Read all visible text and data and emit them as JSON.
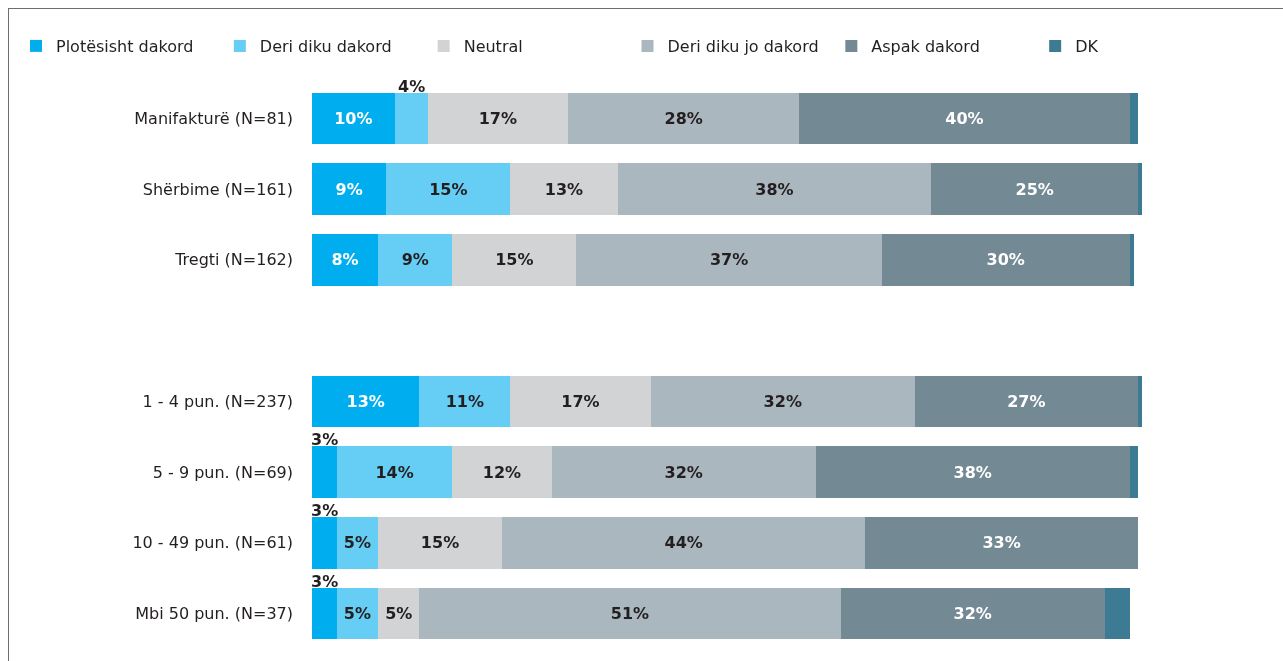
{
  "chart_data": {
    "type": "bar",
    "orientation": "horizontal",
    "stacked": true,
    "legend": "top",
    "tick_labels": "y",
    "categories": [
      "Manifakturë (N=81)",
      "Shërbime (N=161)",
      "Tregti (N=162)",
      null,
      "1 - 4 pun. (N=237)",
      "5 - 9 pun. (N=69)",
      "10 - 49 pun. (N=61)",
      "Mbi 50 pun. (N=37)"
    ],
    "series": [
      {
        "name": "Plotësisht dakord",
        "color": "#00aeef",
        "values": [
          10,
          9,
          8,
          null,
          13,
          3,
          3,
          3
        ],
        "value_labels": [
          "10%",
          "9%",
          "8%",
          null,
          "13%",
          "3%",
          "3%",
          "3%"
        ]
      },
      {
        "name": "Deri diku dakord",
        "color": "#66cdf4",
        "values": [
          4,
          15,
          9,
          null,
          11,
          14,
          5,
          5
        ],
        "value_labels": [
          "4%",
          "15%",
          "9%",
          null,
          "11%",
          "14%",
          "5%",
          "5%"
        ]
      },
      {
        "name": "Neutral",
        "color": "#d1d3d5",
        "values": [
          17,
          13,
          15,
          null,
          17,
          12,
          15,
          5
        ],
        "value_labels": [
          "17%",
          "13%",
          "15%",
          null,
          "17%",
          "12%",
          "15%",
          "5%"
        ]
      },
      {
        "name": "Deri diku jo dakord",
        "color": "#abb7bf",
        "values": [
          28,
          38,
          37,
          null,
          32,
          32,
          44,
          51
        ],
        "value_labels": [
          "28%",
          "38%",
          "37%",
          null,
          "32%",
          "32%",
          "44%",
          "51%"
        ]
      },
      {
        "name": "Aspak dakord",
        "color": "#738993",
        "values": [
          40,
          25,
          30,
          null,
          27,
          38,
          33,
          32
        ],
        "value_labels": [
          "40%",
          "25%",
          "30%",
          null,
          "27%",
          "38%",
          "33%",
          "32%"
        ]
      },
      {
        "name": "DK",
        "color": "#3d7b95",
        "values": [
          1,
          0.5,
          0.5,
          null,
          0.5,
          1,
          null,
          3
        ]
      }
    ]
  }
}
